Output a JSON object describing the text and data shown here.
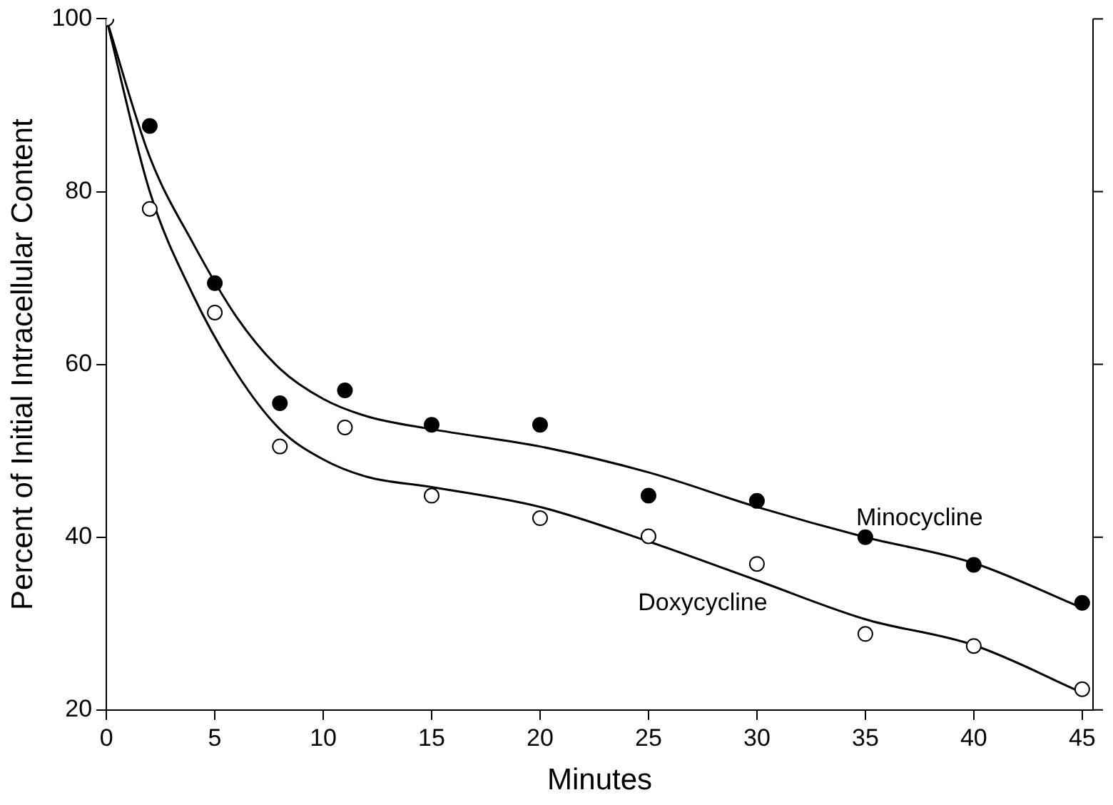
{
  "chart_data": {
    "type": "scatter",
    "xlabel": "Minutes",
    "ylabel": "Percent of Initial Intracellular Content",
    "xlim": [
      0,
      45.5
    ],
    "xticks": [
      0,
      5,
      10,
      15,
      20,
      25,
      30,
      35,
      40,
      45
    ],
    "ylim": [
      20,
      100
    ],
    "yticks": [
      20,
      40,
      60,
      80,
      100
    ],
    "grid": false,
    "legend": false,
    "marker": "circle",
    "series": [
      {
        "color": "#000000",
        "x": [
          2,
          5,
          8,
          11,
          15,
          20,
          25,
          30,
          35,
          40,
          45
        ],
        "values": [
          87.6,
          69.4,
          55.5,
          57,
          53,
          53,
          44.8,
          44.2,
          40,
          36.8,
          32.4
        ]
      },
      {
        "color": "#ffffff",
        "x": [
          0,
          2,
          5,
          8,
          11,
          15,
          20,
          25,
          30,
          35,
          40,
          45
        ],
        "values": [
          100,
          78,
          66,
          50.5,
          52.7,
          44.8,
          42.2,
          40.1,
          36.9,
          28.8,
          27.4,
          22.4
        ]
      },
      {
        "type": "line",
        "name": "Minocycline",
        "marker": "none",
        "color": "#000000",
        "x": [
          0,
          2,
          4,
          6,
          8,
          10,
          12,
          15,
          20,
          25,
          30,
          35,
          40,
          45
        ],
        "values": [
          100,
          84,
          74,
          65.5,
          59.5,
          56,
          54,
          52.5,
          50.5,
          47.5,
          43.5,
          40,
          37,
          31.8
        ]
      },
      {
        "type": "line",
        "name": "Doxycycline",
        "marker": "none",
        "color": "#000000",
        "x": [
          0,
          2,
          4,
          6,
          8,
          10,
          12,
          15,
          20,
          25,
          30,
          35,
          40,
          45
        ],
        "values": [
          100,
          80,
          68,
          59,
          52.5,
          49,
          47,
          45.8,
          43.5,
          39.5,
          35,
          30.5,
          27.5,
          22
        ]
      }
    ]
  }
}
